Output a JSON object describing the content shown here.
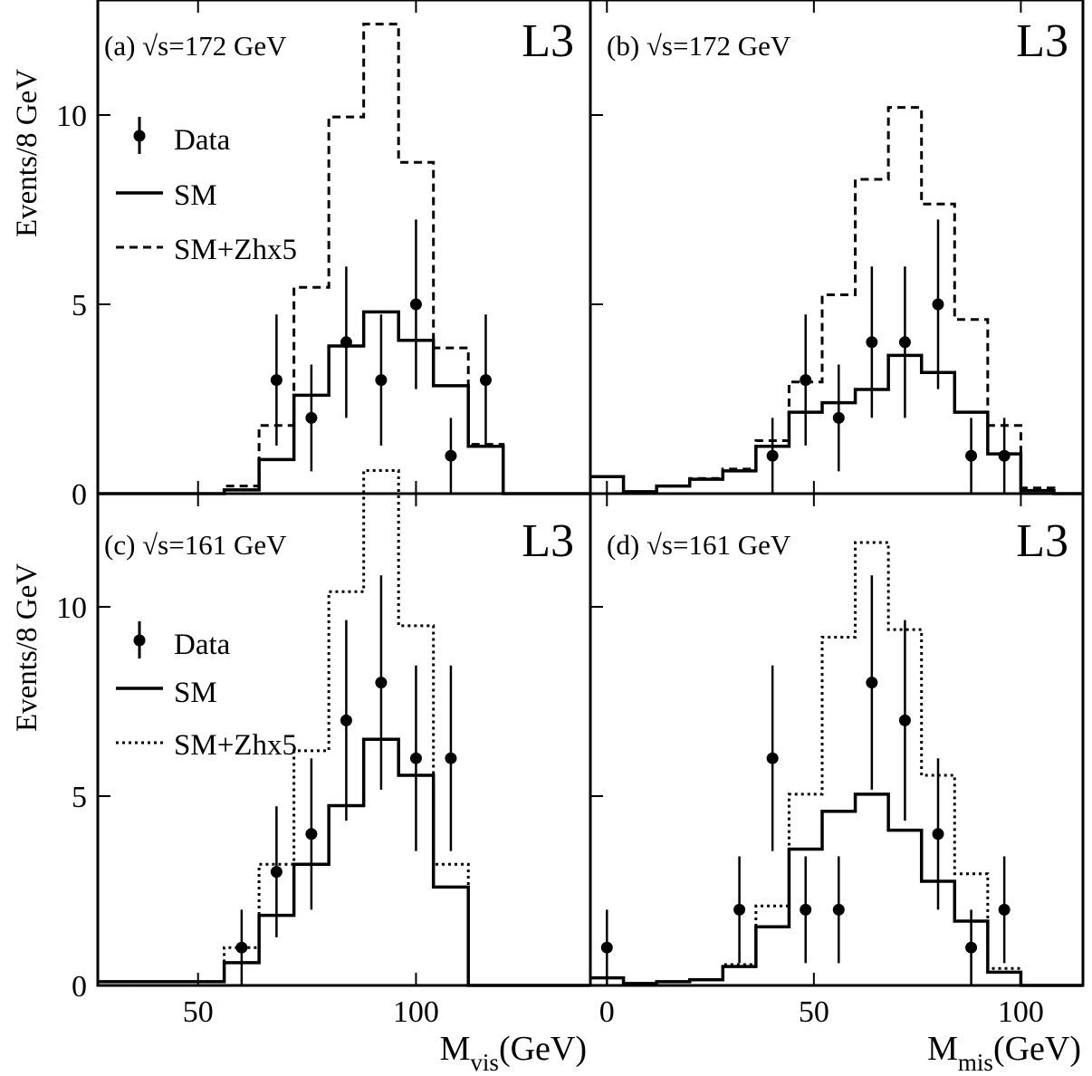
{
  "figure": {
    "ylabel_top": "Events/8 GeV",
    "ylabel_bottom": "Events/8 GeV",
    "xlabel_left": {
      "main": "M",
      "sub": "vis",
      "unit": "(GeV)"
    },
    "xlabel_right": {
      "main": "M",
      "sub": "mis",
      "unit": "(GeV)"
    }
  },
  "legend_top": {
    "data": "Data",
    "sm": "SM",
    "signal": "SM+Zhx5"
  },
  "legend_bottom": {
    "data": "Data",
    "sm": "SM",
    "signal": "SM+Zhx5"
  },
  "colors": {
    "line": "#000000",
    "background": "#ffffff"
  },
  "chart_data": [
    {
      "id": "a",
      "type": "histogram",
      "panel_label": "(a) √s=172 GeV",
      "experiment_label": "L3",
      "xlim": [
        27,
        140
      ],
      "ylim": [
        0,
        13
      ],
      "xticks": [
        50,
        100
      ],
      "yticks": [
        0,
        5,
        10
      ],
      "sm": {
        "x": [
          27,
          56,
          64,
          72,
          80,
          88,
          96,
          104,
          112,
          120,
          140
        ],
        "values": [
          0,
          0.1,
          0.9,
          2.6,
          3.9,
          4.8,
          4.05,
          2.85,
          1.25,
          0,
          0
        ]
      },
      "signal": {
        "style": "dashed",
        "x": [
          27,
          56,
          64,
          72,
          80,
          88,
          96,
          104,
          112,
          120,
          140
        ],
        "values": [
          0,
          0.2,
          1.8,
          5.45,
          9.95,
          12.4,
          8.75,
          3.85,
          1.3,
          0,
          0
        ]
      },
      "data": {
        "x": [
          68,
          76,
          84,
          92,
          100,
          108,
          116
        ],
        "y": [
          3,
          2,
          4,
          3,
          5,
          1,
          3
        ],
        "err": [
          1.73,
          1.41,
          2.0,
          1.73,
          2.24,
          1.0,
          1.73
        ]
      }
    },
    {
      "id": "b",
      "type": "histogram",
      "panel_label": "(b) √s=172 GeV",
      "experiment_label": "L3",
      "xlim": [
        -4,
        115
      ],
      "ylim": [
        0,
        13
      ],
      "xticks": [
        0,
        50,
        100
      ],
      "yticks": [
        0,
        5,
        10
      ],
      "sm": {
        "x": [
          -4,
          4,
          12,
          20,
          28,
          36,
          44,
          52,
          60,
          68,
          76,
          84,
          92,
          100,
          108,
          115
        ],
        "values": [
          0.45,
          0.05,
          0.2,
          0.38,
          0.6,
          1.25,
          2.15,
          2.4,
          2.75,
          3.65,
          3.2,
          2.15,
          1.05,
          0.08,
          0
        ]
      },
      "signal": {
        "style": "dashed",
        "x": [
          -4,
          4,
          12,
          20,
          28,
          36,
          44,
          52,
          60,
          68,
          76,
          84,
          92,
          100,
          108,
          115
        ],
        "values": [
          0.45,
          0.05,
          0.2,
          0.4,
          0.65,
          1.4,
          2.95,
          5.25,
          8.3,
          10.2,
          7.65,
          4.6,
          1.8,
          0.15,
          0
        ]
      },
      "data": {
        "x": [
          40,
          48,
          56,
          64,
          72,
          80,
          88,
          96
        ],
        "y": [
          1,
          3,
          2,
          4,
          4,
          5,
          1,
          1
        ],
        "err": [
          1.0,
          1.73,
          1.41,
          2.0,
          2.0,
          2.24,
          1.0,
          1.0
        ]
      }
    },
    {
      "id": "c",
      "type": "histogram",
      "panel_label": "(c) √s=161 GeV",
      "experiment_label": "L3",
      "xlim": [
        27,
        140
      ],
      "ylim": [
        0,
        13
      ],
      "xticks": [
        50,
        100
      ],
      "yticks": [
        0,
        5,
        10
      ],
      "sm": {
        "x": [
          27,
          56,
          64,
          72,
          80,
          88,
          96,
          104,
          112,
          140
        ],
        "values": [
          0.1,
          0.6,
          1.85,
          3.2,
          4.75,
          6.5,
          5.55,
          2.6,
          0
        ]
      },
      "signal": {
        "style": "dotted",
        "x": [
          27,
          56,
          64,
          72,
          80,
          88,
          96,
          104,
          112,
          140
        ],
        "values": [
          0.1,
          1.0,
          3.2,
          6.2,
          10.4,
          13.6,
          9.5,
          3.2,
          0
        ]
      },
      "data": {
        "x": [
          60,
          68,
          76,
          84,
          92,
          100,
          108
        ],
        "y": [
          1,
          3,
          4,
          7,
          8,
          6,
          6
        ],
        "err": [
          1.0,
          1.73,
          2.0,
          2.65,
          2.83,
          2.45,
          2.45
        ]
      }
    },
    {
      "id": "d",
      "type": "histogram",
      "panel_label": "(d) √s=161 GeV",
      "experiment_label": "L3",
      "xlim": [
        -4,
        115
      ],
      "ylim": [
        0,
        13
      ],
      "xticks": [
        0,
        50,
        100
      ],
      "yticks": [
        0,
        5,
        10
      ],
      "sm": {
        "x": [
          -4,
          4,
          12,
          20,
          28,
          36,
          44,
          52,
          60,
          68,
          76,
          84,
          92,
          100,
          108,
          115
        ],
        "values": [
          0.2,
          0.05,
          0.1,
          0.15,
          0.5,
          1.55,
          3.6,
          4.6,
          5.05,
          4.1,
          2.75,
          1.7,
          0.35,
          0,
          0
        ]
      },
      "signal": {
        "style": "dotted",
        "x": [
          -4,
          4,
          12,
          20,
          28,
          36,
          44,
          52,
          60,
          68,
          76,
          84,
          92,
          100,
          108,
          115
        ],
        "values": [
          0.2,
          0.05,
          0.1,
          0.15,
          0.55,
          2.1,
          5.05,
          9.2,
          11.7,
          9.4,
          5.55,
          2.95,
          0.45,
          0,
          0
        ]
      },
      "data": {
        "x": [
          0,
          32,
          40,
          48,
          56,
          64,
          72,
          80,
          88,
          96
        ],
        "y": [
          1,
          2,
          6,
          2,
          2,
          8,
          7,
          4,
          1,
          2
        ],
        "err": [
          1.0,
          1.41,
          2.45,
          1.41,
          1.41,
          2.83,
          2.65,
          2.0,
          1.0,
          1.41
        ]
      }
    }
  ]
}
